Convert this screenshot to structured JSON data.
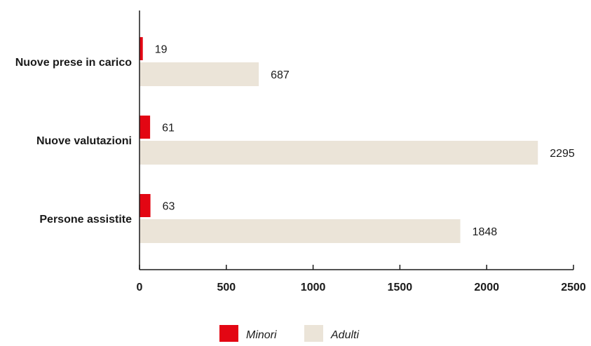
{
  "chart_data": {
    "type": "bar",
    "orientation": "horizontal",
    "categories": [
      "Nuove prese in carico",
      "Nuove valutazioni",
      "Persone assistite"
    ],
    "series": [
      {
        "name": "Minori",
        "values": [
          19,
          61,
          63
        ],
        "color": "#e30613"
      },
      {
        "name": "Adulti",
        "values": [
          687,
          2295,
          1848
        ],
        "color": "#ebe4d8"
      }
    ],
    "x_ticks": [
      "0",
      "500",
      "1000",
      "1500",
      "2000",
      "2500"
    ],
    "xlim": [
      0,
      2500
    ],
    "grid": false,
    "legend_position": "bottom-center",
    "axis_color": "#1a1a1a"
  }
}
